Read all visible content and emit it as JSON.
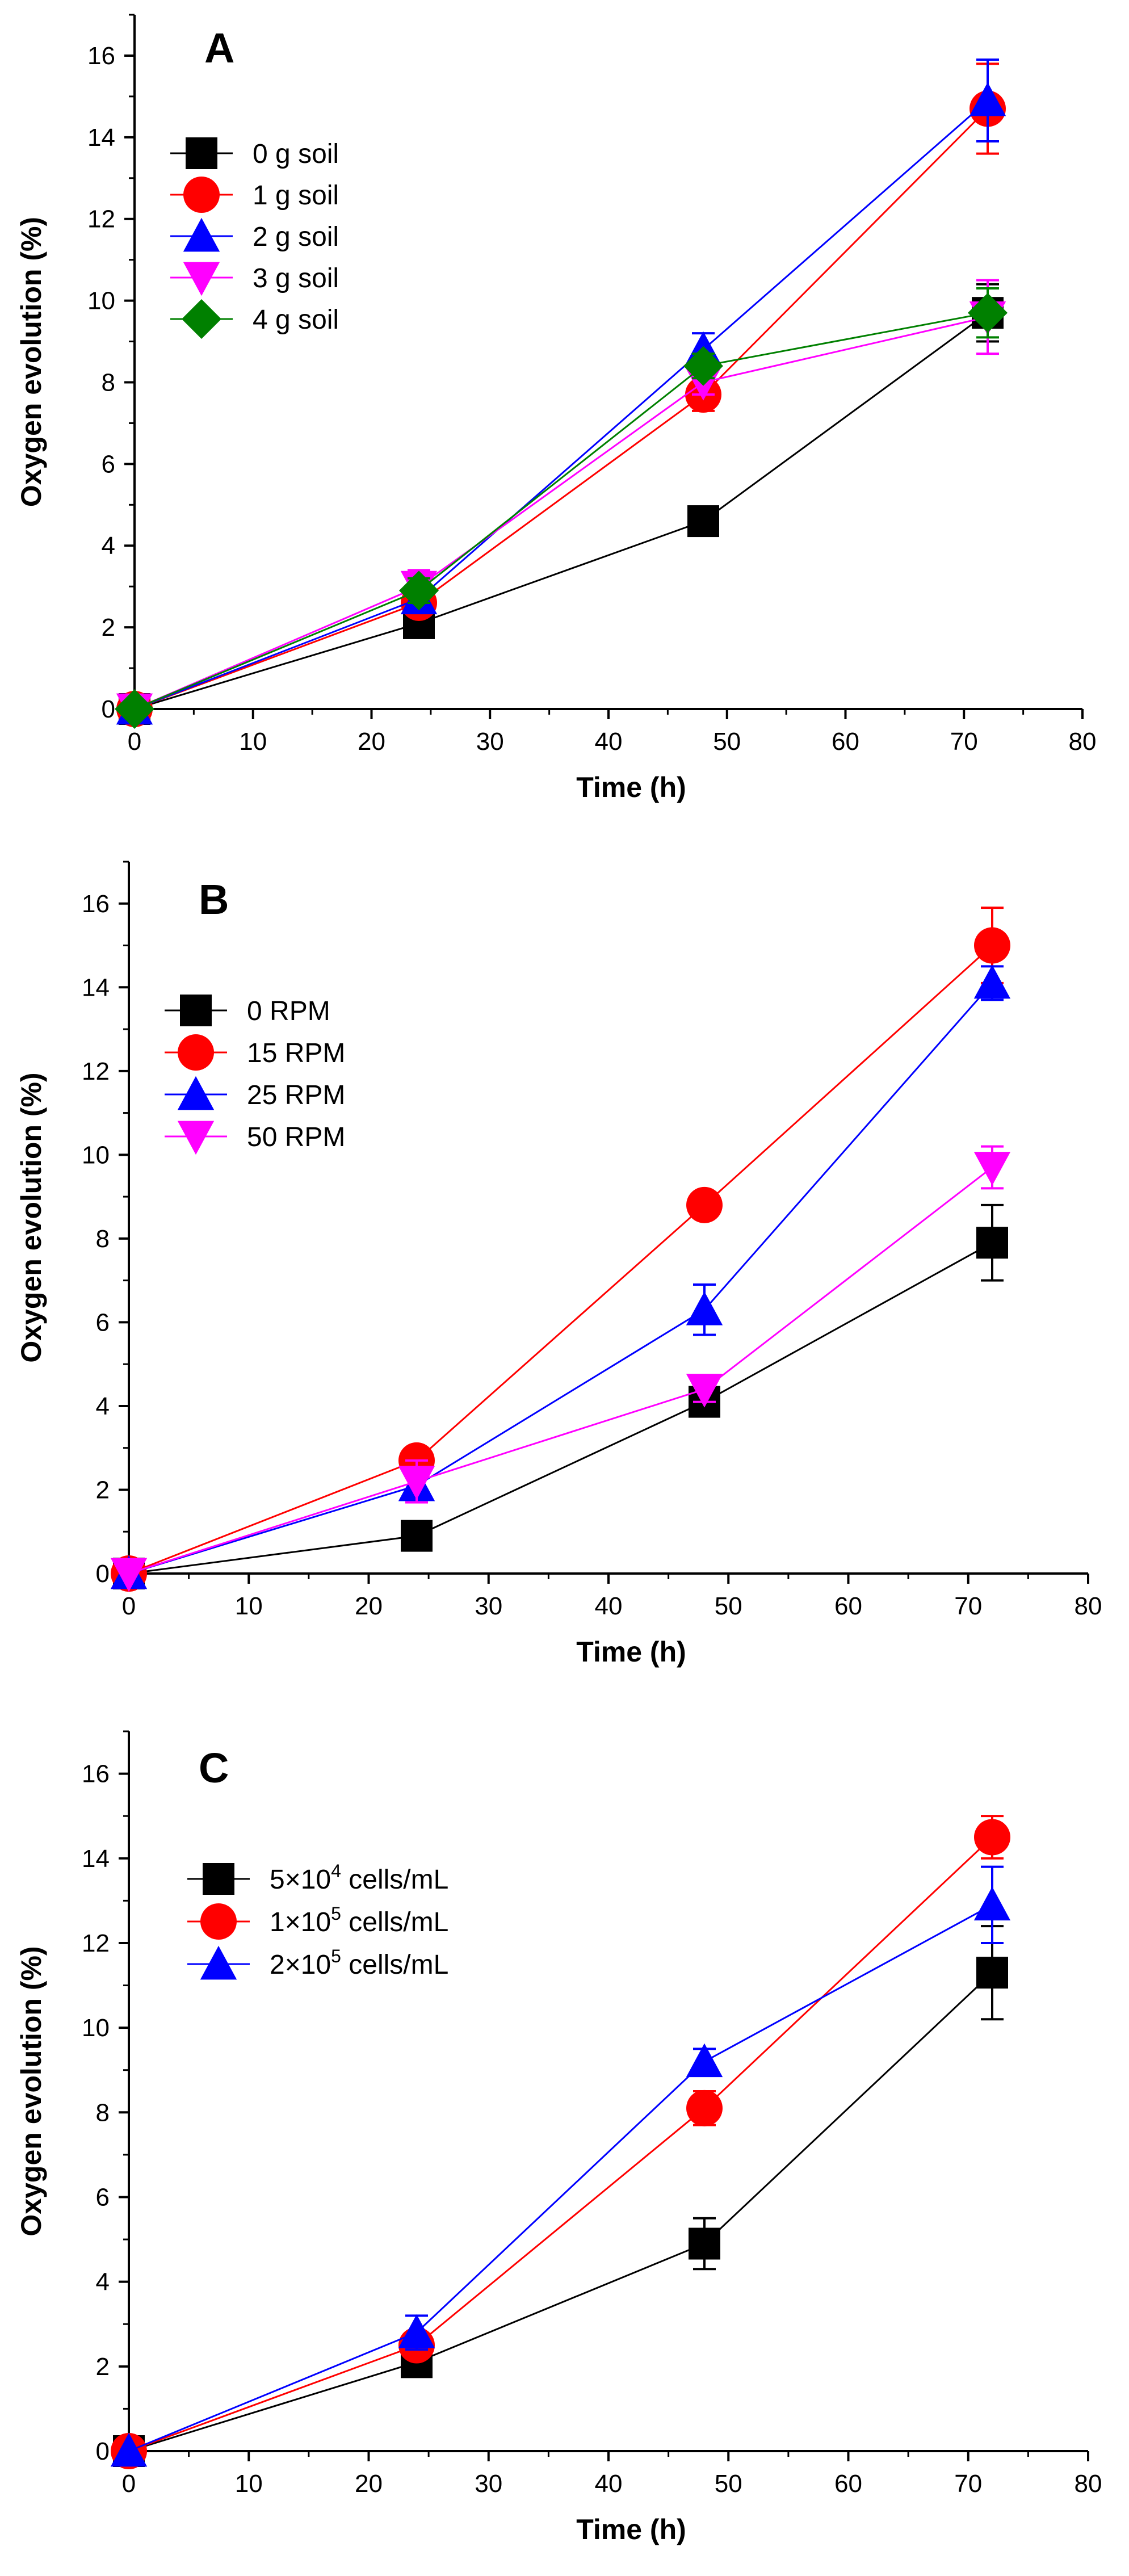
{
  "chart_data": [
    {
      "type": "line",
      "panel_label": "A",
      "xlabel": "Time (h)",
      "ylabel": "Oxygen evolution (%)",
      "xlim": [
        0,
        80
      ],
      "ylim": [
        0,
        17
      ],
      "xticks": [
        0,
        10,
        20,
        30,
        40,
        50,
        60,
        70,
        80
      ],
      "yticks": [
        0,
        2,
        4,
        6,
        8,
        10,
        12,
        14,
        16
      ],
      "x": [
        0,
        24,
        48,
        72
      ],
      "legend_position": "top-left",
      "series": [
        {
          "name": "0 g soil",
          "color": "#000000",
          "marker": "square",
          "values": [
            0,
            2.1,
            4.6,
            9.7
          ],
          "errors": [
            0,
            0.2,
            0.2,
            0.7
          ]
        },
        {
          "name": "1 g soil",
          "color": "#ff0000",
          "marker": "circle",
          "values": [
            0,
            2.6,
            7.7,
            14.7
          ],
          "errors": [
            0,
            0.3,
            0.4,
            1.1
          ]
        },
        {
          "name": "2 g soil",
          "color": "#0000ff",
          "marker": "triangle-up",
          "values": [
            0,
            2.7,
            8.8,
            14.9
          ],
          "errors": [
            0,
            0.3,
            0.4,
            1.0
          ]
        },
        {
          "name": "3 g soil",
          "color": "#ff00ff",
          "marker": "triangle-down",
          "values": [
            0,
            3.0,
            8.0,
            9.6
          ],
          "errors": [
            0,
            0.4,
            0.3,
            0.9
          ]
        },
        {
          "name": "4 g soil",
          "color": "#008000",
          "marker": "diamond",
          "values": [
            0,
            2.9,
            8.4,
            9.7
          ],
          "errors": [
            0,
            0.3,
            0.3,
            0.6
          ]
        }
      ]
    },
    {
      "type": "line",
      "panel_label": "B",
      "xlabel": "Time (h)",
      "ylabel": "Oxygen evolution (%)",
      "xlim": [
        0,
        80
      ],
      "ylim": [
        0,
        17
      ],
      "xticks": [
        0,
        10,
        20,
        30,
        40,
        50,
        60,
        70,
        80
      ],
      "yticks": [
        0,
        2,
        4,
        6,
        8,
        10,
        12,
        14,
        16
      ],
      "x": [
        0,
        24,
        48,
        72
      ],
      "legend_position": "top-left",
      "series": [
        {
          "name": "0 RPM",
          "color": "#000000",
          "marker": "square",
          "values": [
            0,
            0.9,
            4.1,
            7.9
          ],
          "errors": [
            0,
            0.1,
            0.2,
            0.9
          ]
        },
        {
          "name": "15 RPM",
          "color": "#ff0000",
          "marker": "circle",
          "values": [
            0,
            2.7,
            8.8,
            15.0
          ],
          "errors": [
            0,
            0.2,
            0.3,
            0.9
          ]
        },
        {
          "name": "25 RPM",
          "color": "#0000ff",
          "marker": "triangle-up",
          "values": [
            0,
            2.1,
            6.3,
            14.1
          ],
          "errors": [
            0,
            0.3,
            0.6,
            0.4
          ]
        },
        {
          "name": "50 RPM",
          "color": "#ff00ff",
          "marker": "triangle-down",
          "values": [
            0,
            2.2,
            4.4,
            9.7
          ],
          "errors": [
            0,
            0.5,
            0.3,
            0.5
          ]
        }
      ]
    },
    {
      "type": "line",
      "panel_label": "C",
      "xlabel": "Time (h)",
      "ylabel": "Oxygen evolution (%)",
      "xlim": [
        0,
        80
      ],
      "ylim": [
        0,
        17
      ],
      "xticks": [
        0,
        10,
        20,
        30,
        40,
        50,
        60,
        70,
        80
      ],
      "yticks": [
        0,
        2,
        4,
        6,
        8,
        10,
        12,
        14,
        16
      ],
      "x": [
        0,
        24,
        48,
        72
      ],
      "legend_position": "top-left",
      "series": [
        {
          "name": "5×10",
          "name_sup": "4",
          "name_suffix": " cells/mL",
          "color": "#000000",
          "marker": "square",
          "values": [
            0,
            2.1,
            4.9,
            11.3
          ],
          "errors": [
            0,
            0.2,
            0.6,
            1.1
          ]
        },
        {
          "name": "1×10",
          "name_sup": "5",
          "name_suffix": " cells/mL",
          "color": "#ff0000",
          "marker": "circle",
          "values": [
            0,
            2.5,
            8.1,
            14.5
          ],
          "errors": [
            0,
            0.2,
            0.4,
            0.5
          ]
        },
        {
          "name": "2×10",
          "name_sup": "5",
          "name_suffix": " cells/mL",
          "color": "#0000ff",
          "marker": "triangle-up",
          "values": [
            0,
            2.8,
            9.2,
            12.9
          ],
          "errors": [
            0,
            0.4,
            0.3,
            0.9
          ]
        }
      ]
    }
  ]
}
